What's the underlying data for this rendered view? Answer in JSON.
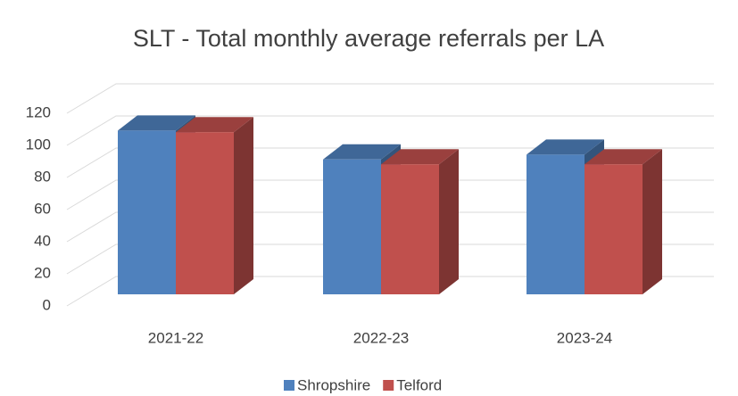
{
  "chart_data": {
    "type": "bar3d",
    "title": "SLT - Total monthly average referrals per LA",
    "categories": [
      "2021-22",
      "2022-23",
      "2023-24"
    ],
    "series": [
      {
        "name": "Shropshire",
        "color": "#4f81bd",
        "values": [
          102,
          84,
          87
        ]
      },
      {
        "name": "Telford",
        "color": "#c0504d",
        "values": [
          101,
          81,
          81
        ]
      }
    ],
    "ylim": [
      0,
      120
    ],
    "yticks": [
      0,
      20,
      40,
      60,
      80,
      100,
      120
    ],
    "grid": true,
    "legend": "bottom"
  }
}
